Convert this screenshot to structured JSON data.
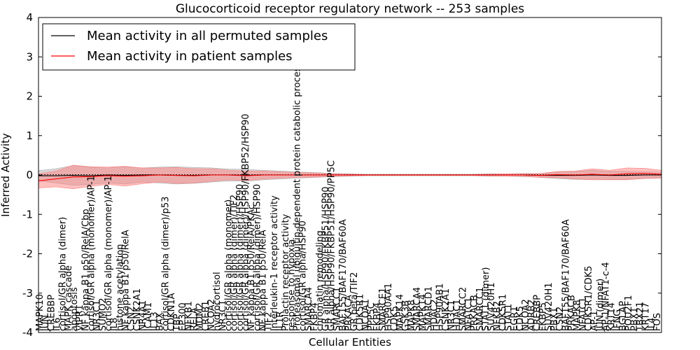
{
  "chart_data": {
    "type": "line",
    "title": "Glucocorticoid receptor regulatory network -- 253 samples",
    "xlabel": "Cellular Entities",
    "ylabel": "Inferred Activity",
    "ylim": [
      -4,
      4
    ],
    "yticks": [
      "-4",
      "-3",
      "-2",
      "-1",
      "0",
      "1",
      "2",
      "3",
      "4"
    ],
    "grid": false,
    "legend_position": "top-left",
    "series": [
      {
        "name": "Mean activity in all permuted samples",
        "color": "#000000",
        "band_color": "#a8a8a8",
        "x": [
          0,
          5,
          10,
          15,
          20,
          25,
          30,
          35,
          40,
          45,
          50,
          55,
          60,
          65,
          70,
          75,
          80,
          85,
          90,
          95,
          100,
          105,
          110,
          115,
          120,
          125,
          130,
          135,
          140,
          145,
          150,
          155,
          160,
          165,
          170,
          175,
          180
        ],
        "mean": [
          -0.02,
          -0.02,
          -0.01,
          -0.02,
          0.0,
          -0.01,
          0.0,
          0.0,
          -0.01,
          -0.01,
          0.0,
          0.0,
          -0.01,
          0.0,
          0.0,
          0.0,
          0.0,
          0.0,
          0.0,
          0.0,
          0.0,
          0.0,
          0.0,
          0.0,
          0.0,
          0.0,
          0.0,
          0.0,
          0.0,
          -0.01,
          -0.01,
          -0.01,
          0.0,
          -0.01,
          -0.01,
          0.0,
          0.0
        ],
        "spread": [
          0.13,
          0.18,
          0.25,
          0.22,
          0.2,
          0.22,
          0.18,
          0.2,
          0.22,
          0.2,
          0.18,
          0.15,
          0.15,
          0.12,
          0.1,
          0.08,
          0.06,
          0.04,
          0.03,
          0.02,
          0.02,
          0.02,
          0.02,
          0.02,
          0.02,
          0.02,
          0.03,
          0.03,
          0.04,
          0.05,
          0.08,
          0.1,
          0.12,
          0.1,
          0.1,
          0.08,
          0.07
        ]
      },
      {
        "name": "Mean activity in patient samples",
        "color": "#ff0000",
        "band_color": "#ff8080",
        "x": [
          0,
          5,
          10,
          15,
          20,
          25,
          30,
          35,
          40,
          45,
          50,
          55,
          60,
          65,
          70,
          75,
          80,
          85,
          90,
          95,
          100,
          105,
          110,
          115,
          120,
          125,
          130,
          135,
          140,
          145,
          150,
          155,
          160,
          165,
          170,
          175,
          180
        ],
        "mean": [
          -0.15,
          -0.1,
          -0.05,
          -0.04,
          -0.02,
          -0.03,
          -0.02,
          0.0,
          -0.01,
          -0.02,
          0.0,
          0.0,
          -0.02,
          0.0,
          0.0,
          0.0,
          0.0,
          0.0,
          0.0,
          0.0,
          0.0,
          0.0,
          0.0,
          0.0,
          0.0,
          0.0,
          0.0,
          0.0,
          0.0,
          -0.01,
          0.01,
          0.0,
          0.02,
          0.0,
          0.03,
          0.04,
          0.02
        ],
        "spread": [
          0.18,
          0.2,
          0.3,
          0.25,
          0.22,
          0.25,
          0.2,
          0.18,
          0.2,
          0.18,
          0.16,
          0.12,
          0.12,
          0.1,
          0.08,
          0.06,
          0.05,
          0.03,
          0.02,
          0.01,
          0.01,
          0.01,
          0.01,
          0.01,
          0.01,
          0.01,
          0.02,
          0.03,
          0.03,
          0.05,
          0.08,
          0.1,
          0.14,
          0.12,
          0.15,
          0.13,
          0.1
        ]
      }
    ],
    "x_tick_labels": [
      "MAPK10",
      "JUN",
      "CREBBP",
      "IL6",
      "cortisol/GR alpha (dimer)",
      "MAPK cascade",
      "apoptosis",
      "VIPR1",
      "NF kappa B1 p50/RelA/Cbp",
      "cortisol/GR alpha (monomer)/AP-1",
      "NR3C1",
      "SUMO2",
      "cortisol/GR alpha (monomer)/AP-1",
      "IL8",
      "histone acetylation",
      "NF kappa B1 p50/RelA",
      "CSN2",
      "CSNK2A1",
      "NR4A1",
      "ICAM1",
      "IL13",
      "BAX",
      "cortisol/GR alpha (dimer)/p53",
      "CDKN1A",
      "TBP",
      "EP300",
      "NFKB1",
      "RELA",
      "MDM2",
      "CREB1",
      "NCOA2",
      "hydrocortisol",
      "NR3C1",
      "cortisol/GR alpha (monomer)",
      "cortisol/GR alpha (dimer)/TIF2",
      "cortisol/GR alpha (dimer)/HSP90",
      "cortisol/GR alpha (dimer)/HSP90/FKBP52/HSP90",
      "NF kappa B1 p50/RelA/PKAc",
      "cortisol/GR alpha (dimer)/HSP90",
      "NF kappa B1 p50/RelA",
      "TIF2",
      "Interleukin-1 receptor activity",
      "IL1R",
      "Prolactin receptor activity",
      "response to hypoxia",
      "Proteasomal ubiquitin-dependent protein catabolic process",
      "cortisol/GR alpha/HSP90",
      "SMARCA4",
      "FKBP4",
      "chromatin remodeling",
      "GR alpha/HSP90/FKBP51/HSP90",
      "GR alpha/HSP90/FKBP51/HSP90/PP5C",
      "SMARCC1",
      "BAF155/BAF170/BAF60A",
      "PRKACA",
      "GR beta/TIF2",
      "CDK5R1",
      "NCOA1",
      "PPP5C",
      "FKBP4",
      "SMARCE1",
      "HSP90AA1",
      "CDK5",
      "MAPK14",
      "GSK3B",
      "MAPK8",
      "SMARCA4",
      "MAPK14",
      "SMARCD1",
      "HDAC2",
      "HSP90AB1",
      "CSNK2A1",
      "NR3C1",
      "HDAC1",
      "SMARCC2",
      "NFATC1",
      "PRKACB",
      "SMARCC1",
      "STAT1 (dimer)",
      "SUV420H1",
      "NFKB2",
      "CDK5R1",
      "STAT1",
      "EGR1",
      "CDK5",
      "NCOA2",
      "ADRB2",
      "CREBBP",
      "FKBP5",
      "SUV420H1",
      "PBX1",
      "CSN2",
      "BAF155/BAF170/BAF60A",
      "PRKACB",
      "MAPK8",
      "NFATC1",
      "CDK5R1/CDK5",
      "AP-1",
      "JUN (dimer)",
      "AP-1/NFAT1-c-4",
      "KRT14",
      "IFNG",
      "BGLAP",
      "POU2F1",
      "PBX1",
      "TBX21",
      "KRT17",
      "IL4",
      "FOS"
    ]
  }
}
